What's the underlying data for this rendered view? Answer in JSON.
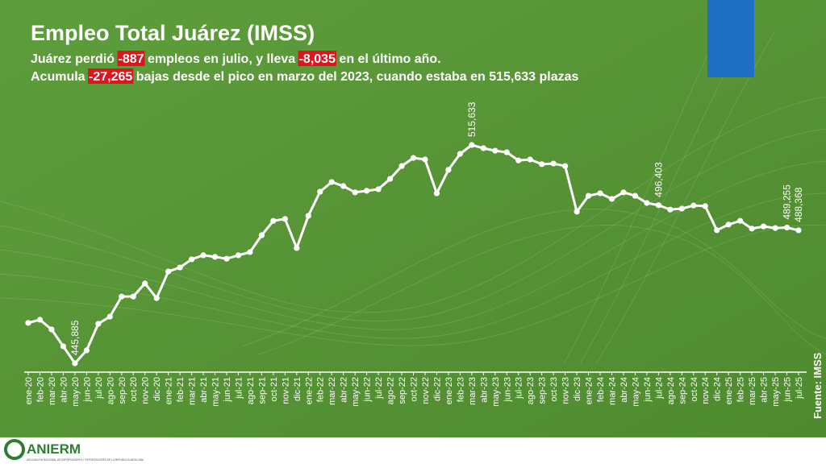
{
  "header": {
    "title": "Empleo Total Juárez (IMSS)",
    "lines": [
      [
        {
          "text": "Juárez perdió ",
          "highlight": false
        },
        {
          "text": "-887",
          "highlight": true
        },
        {
          "text": " empleos en julio, y lleva ",
          "highlight": false
        },
        {
          "text": "-8,035",
          "highlight": true
        },
        {
          "text": " en el último año.",
          "highlight": false
        }
      ],
      [
        {
          "text": "Acumula ",
          "highlight": false
        },
        {
          "text": "-27,265",
          "highlight": true
        },
        {
          "text": " bajas desde el pico en marzo del 2023, cuando estaba en 515,633 plazas",
          "highlight": false
        }
      ]
    ]
  },
  "chart_data": {
    "type": "line",
    "color": "#ffffff",
    "categories": [
      "ene-20",
      "feb-20",
      "mar-20",
      "abr-20",
      "may-20",
      "jun-20",
      "jul-20",
      "ago-20",
      "sep-20",
      "oct-20",
      "nov-20",
      "dic-20",
      "ene-21",
      "feb-21",
      "mar-21",
      "abr-21",
      "may-21",
      "jun-21",
      "jul-21",
      "ago-21",
      "sep-21",
      "oct-21",
      "nov-21",
      "dic-21",
      "ene-22",
      "feb-22",
      "mar-22",
      "abr-22",
      "may-22",
      "jun-22",
      "jul-22",
      "ago-22",
      "sep-22",
      "oct-22",
      "nov-22",
      "dic-22",
      "ene-23",
      "feb-23",
      "mar-23",
      "abr-23",
      "may-23",
      "jun-23",
      "jul-23",
      "ago-23",
      "sep-23",
      "oct-23",
      "nov-23",
      "dic-23",
      "ene-24",
      "feb-24",
      "mar-24",
      "abr-24",
      "may-24",
      "jun-24",
      "jul-24",
      "ago-24",
      "sep-24",
      "oct-24",
      "nov-24",
      "dic-24",
      "ene-25",
      "feb-25",
      "mar-25",
      "abr-25",
      "may-25",
      "jun-25",
      "jul-25"
    ],
    "values": [
      458800,
      459800,
      456700,
      451300,
      445885,
      450000,
      458500,
      460800,
      467200,
      467200,
      471400,
      466700,
      475200,
      476500,
      479100,
      480400,
      479900,
      479300,
      480400,
      481400,
      486800,
      491400,
      492000,
      482700,
      493000,
      500700,
      503800,
      502500,
      500500,
      501000,
      501500,
      504800,
      508900,
      511500,
      511000,
      500200,
      507700,
      512800,
      515633,
      514600,
      513800,
      513300,
      510700,
      511000,
      509500,
      509700,
      508900,
      494300,
      499400,
      500200,
      498400,
      500500,
      499400,
      497100,
      496403,
      495000,
      495300,
      496300,
      496100,
      488400,
      490200,
      491400,
      488900,
      489600,
      489100,
      489255,
      488368
    ],
    "value_labels": [
      null,
      null,
      null,
      null,
      "445,885",
      null,
      null,
      null,
      null,
      null,
      null,
      null,
      null,
      null,
      null,
      null,
      null,
      null,
      null,
      null,
      null,
      null,
      null,
      null,
      null,
      null,
      null,
      null,
      null,
      null,
      null,
      null,
      null,
      null,
      null,
      null,
      null,
      null,
      "515,633",
      null,
      null,
      null,
      null,
      null,
      null,
      null,
      null,
      null,
      null,
      null,
      null,
      null,
      null,
      null,
      "496,403",
      null,
      null,
      null,
      null,
      null,
      null,
      null,
      null,
      null,
      null,
      "489,255",
      "488,368"
    ],
    "source": "Fuente: IMSS"
  },
  "logo": {
    "name": "ANIERM",
    "tagline": "ASOCIACIÓN NACIONAL DE IMPORTADORES Y EXPORTADORES DE LA REPÚBLICA MEXICANA"
  }
}
